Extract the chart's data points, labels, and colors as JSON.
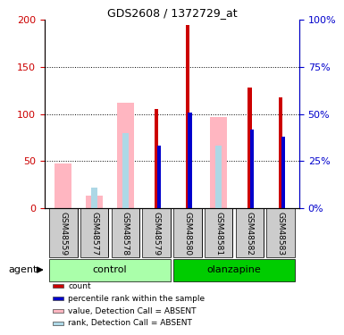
{
  "title": "GDS2608 / 1372729_at",
  "samples": [
    "GSM48559",
    "GSM48577",
    "GSM48578",
    "GSM48579",
    "GSM48580",
    "GSM48581",
    "GSM48582",
    "GSM48583"
  ],
  "red_bars": [
    null,
    null,
    null,
    105,
    195,
    null,
    128,
    118
  ],
  "blue_bars_pct": [
    null,
    null,
    null,
    33,
    51,
    null,
    42,
    38
  ],
  "pink_bars": [
    47,
    13,
    112,
    null,
    null,
    97,
    null,
    null
  ],
  "lb_bars_pct": [
    null,
    11,
    40,
    null,
    null,
    33,
    null,
    null
  ],
  "left_ylim": [
    0,
    200
  ],
  "left_yticks": [
    0,
    50,
    100,
    150,
    200
  ],
  "right_ylim": [
    0,
    100
  ],
  "right_yticks": [
    0,
    25,
    50,
    75,
    100
  ],
  "left_ycolor": "#CC0000",
  "right_ycolor": "#0000CC",
  "legend_items": [
    {
      "color": "#CC0000",
      "label": "count"
    },
    {
      "color": "#0000CC",
      "label": "percentile rank within the sample"
    },
    {
      "color": "#FFB6C1",
      "label": "value, Detection Call = ABSENT"
    },
    {
      "color": "#ADD8E6",
      "label": "rank, Detection Call = ABSENT"
    }
  ],
  "control_color_light": "#AAFFAA",
  "control_color": "#66DD66",
  "olanzapine_color": "#00CC00",
  "sample_box_color": "#CCCCCC",
  "agent_label": "agent"
}
